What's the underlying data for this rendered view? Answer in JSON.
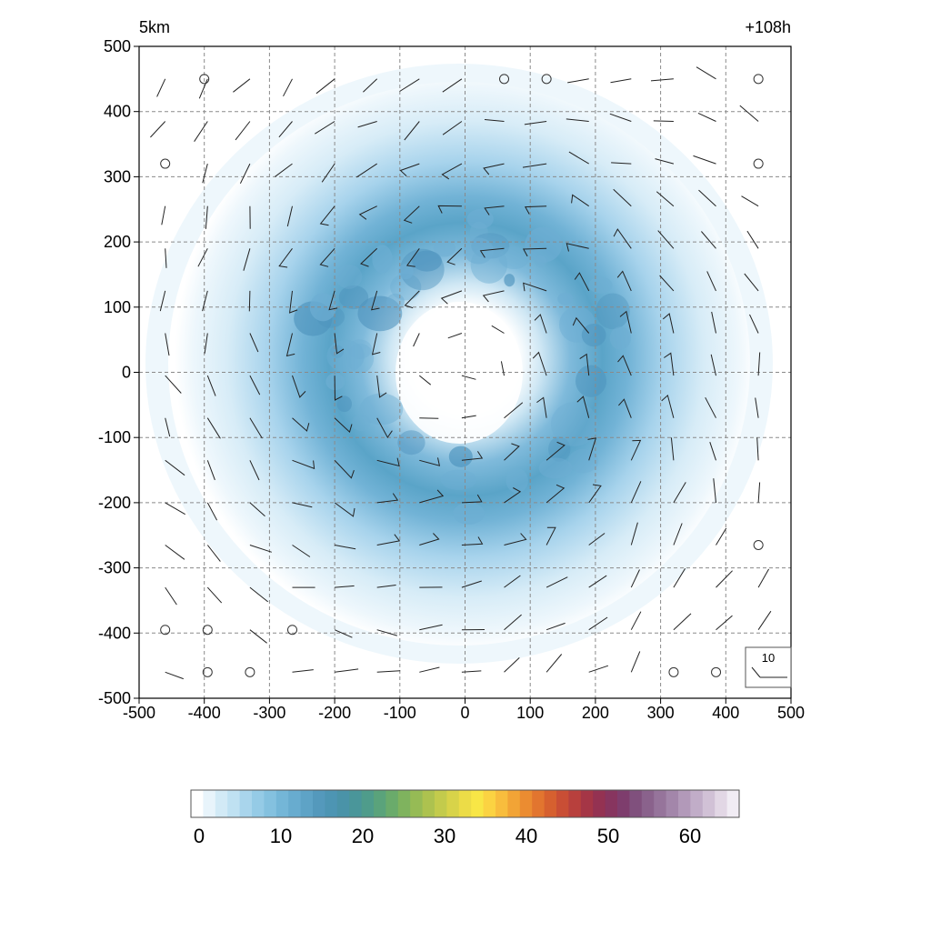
{
  "chart_data": {
    "type": "heatmap",
    "level_label": "5km",
    "time_label": "+108h",
    "x_ticks": [
      "-500",
      "-400",
      "-300",
      "-200",
      "-100",
      "0",
      "100",
      "200",
      "300",
      "400",
      "500"
    ],
    "y_ticks": [
      "500",
      "400",
      "300",
      "200",
      "100",
      "0",
      "-100",
      "-200",
      "-300",
      "-400",
      "-500"
    ],
    "xlim": [
      -500,
      500
    ],
    "ylim": [
      -500,
      500
    ],
    "grid": true,
    "field": {
      "description_values": "filled contours of an annular field centred near (0,0)",
      "ring_center": [
        0,
        20
      ],
      "ring_radius": 190,
      "peak_value": 16,
      "outer_edge_radius": 420,
      "inner_calm_radius": 80
    },
    "colorbar": {
      "min": 0,
      "max": 66,
      "ticks": [
        "0",
        "10",
        "20",
        "30",
        "40",
        "50",
        "60"
      ],
      "colors": [
        "#ffffff",
        "#e8f4fb",
        "#d2eaf6",
        "#bfe1f2",
        "#a9d5ec",
        "#95cbe6",
        "#84c1df",
        "#74b6d7",
        "#68accf",
        "#5ea3c6",
        "#5499bc",
        "#4d95b3",
        "#4a93a8",
        "#4a969a",
        "#4f9c8b",
        "#5aa37b",
        "#6aab6b",
        "#7fb35e",
        "#96bb55",
        "#adc24f",
        "#c3cb4c",
        "#d8d349",
        "#ecdc47",
        "#f8e646",
        "#fbd342",
        "#f8bd3d",
        "#f2a436",
        "#eb8c31",
        "#e2752f",
        "#d6602f",
        "#c94e35",
        "#b8403d",
        "#a53646",
        "#943252",
        "#87355f",
        "#7e3d6d",
        "#80507d",
        "#8a628c",
        "#96749b",
        "#a386aa",
        "#b299b9",
        "#c1adc8",
        "#d1c1d6",
        "#e2d7e5",
        "#f1ecf4"
      ]
    },
    "wind_legend": {
      "label": "10"
    },
    "calm_points": [
      [
        -400,
        450
      ],
      [
        60,
        450
      ],
      [
        125,
        450
      ],
      [
        450,
        450
      ],
      [
        -460,
        320
      ],
      [
        450,
        320
      ],
      [
        450,
        -265
      ],
      [
        -460,
        -395
      ],
      [
        -395,
        -395
      ],
      [
        -265,
        -395
      ],
      [
        -395,
        -460
      ],
      [
        -330,
        -460
      ],
      [
        320,
        -460
      ],
      [
        385,
        -460
      ]
    ]
  }
}
